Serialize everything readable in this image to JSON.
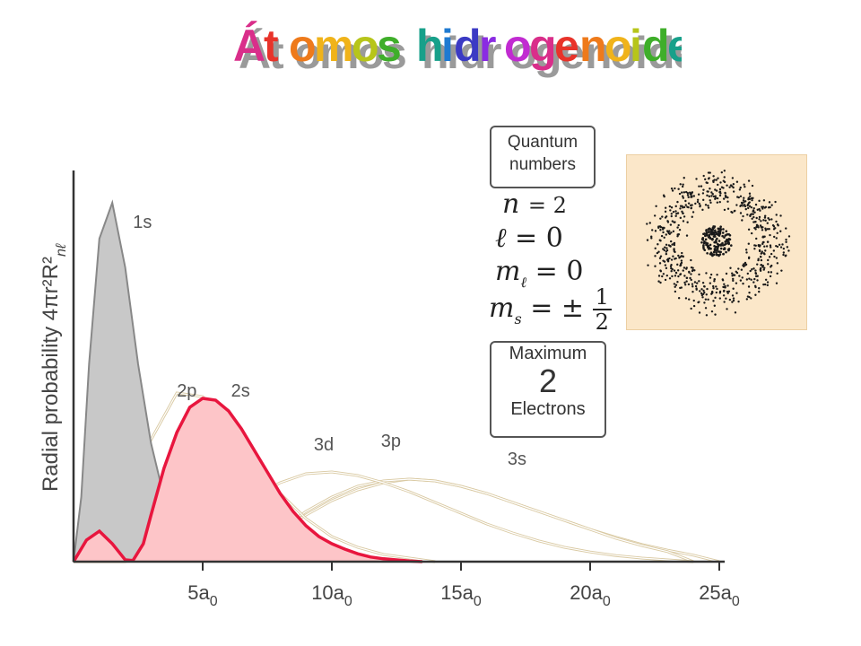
{
  "slide_title": "Átomos hidrogenoides",
  "title_colors": [
    "#d92e8a",
    "#e8332a",
    "#ee7a1b",
    "#f0b31a",
    "#b7c51a",
    "#3fae2a",
    "#17a08a",
    "#1f7ad1",
    "#3b3ac4",
    "#8a2be2",
    "#c12bd1"
  ],
  "chart_data": {
    "type": "line",
    "ylabel": "Radial probability 4πr²R²",
    "ylabel_sub": "nℓ",
    "x_ticks": [
      {
        "value": 5,
        "main": "5a",
        "sub": "0"
      },
      {
        "value": 10,
        "main": "10a",
        "sub": "0"
      },
      {
        "value": 15,
        "main": "15a",
        "sub": "0"
      },
      {
        "value": 20,
        "main": "20a",
        "sub": "0"
      },
      {
        "value": 25,
        "main": "25a",
        "sub": "0"
      }
    ],
    "xlim": [
      0,
      25
    ],
    "highlight_color": "#e8163e",
    "series": [
      {
        "name": "1s",
        "style": "filled-gray",
        "label_at": [
          2.3,
          0.93
        ],
        "x": [
          0,
          0.3,
          0.6,
          1.0,
          1.5,
          2.0,
          2.5,
          3.0,
          3.5,
          4.0,
          4.5,
          5.0
        ],
        "y": [
          0,
          0.18,
          0.55,
          0.9,
          1.0,
          0.82,
          0.55,
          0.33,
          0.18,
          0.09,
          0.04,
          0.0
        ]
      },
      {
        "name": "2s",
        "style": "highlight",
        "label_at": [
          6.1,
          0.46
        ],
        "x": [
          0,
          0.5,
          1.0,
          1.5,
          2.0,
          2.3,
          2.7,
          3.0,
          3.5,
          4.0,
          4.5,
          5.0,
          5.5,
          6.0,
          6.5,
          7.0,
          7.5,
          8.0,
          8.5,
          9.0,
          9.5,
          10.0,
          10.5,
          11.0,
          11.5,
          12.0,
          12.5,
          13.0,
          13.5
        ],
        "y": [
          0,
          0.06,
          0.085,
          0.05,
          0.005,
          0.003,
          0.05,
          0.13,
          0.26,
          0.36,
          0.43,
          0.455,
          0.45,
          0.42,
          0.37,
          0.31,
          0.25,
          0.19,
          0.14,
          0.1,
          0.07,
          0.05,
          0.035,
          0.022,
          0.013,
          0.008,
          0.005,
          0.002,
          0.0
        ]
      },
      {
        "name": "2p",
        "style": "thin-tan",
        "label_at": [
          4.0,
          0.46
        ],
        "x": [
          0,
          1,
          2,
          3,
          4,
          5,
          6,
          7,
          8,
          9,
          10,
          11,
          12,
          13,
          14
        ],
        "y": [
          0,
          0.04,
          0.17,
          0.34,
          0.47,
          0.46,
          0.38,
          0.28,
          0.19,
          0.12,
          0.07,
          0.04,
          0.02,
          0.01,
          0.0
        ]
      },
      {
        "name": "3d",
        "style": "thin-tan",
        "label_at": [
          9.3,
          0.31
        ],
        "x": [
          0,
          2,
          4,
          6,
          7,
          8,
          9,
          10,
          11,
          12,
          13,
          14,
          15,
          16,
          17,
          18,
          19,
          20,
          21,
          22,
          23,
          24
        ],
        "y": [
          0,
          0.0,
          0.04,
          0.13,
          0.18,
          0.22,
          0.245,
          0.25,
          0.24,
          0.22,
          0.195,
          0.165,
          0.135,
          0.105,
          0.08,
          0.058,
          0.04,
          0.027,
          0.017,
          0.01,
          0.005,
          0.0
        ]
      },
      {
        "name": "3p",
        "style": "thin-tan",
        "label_at": [
          11.9,
          0.32
        ],
        "x": [
          0,
          1,
          2,
          3,
          4,
          5,
          6,
          7,
          8,
          9,
          10,
          11,
          12,
          13,
          14,
          15,
          16,
          17,
          18,
          19,
          20,
          21,
          22,
          23,
          24
        ],
        "y": [
          0,
          0.01,
          0.03,
          0.055,
          0.07,
          0.06,
          0.045,
          0.05,
          0.09,
          0.14,
          0.18,
          0.21,
          0.225,
          0.23,
          0.225,
          0.21,
          0.19,
          0.165,
          0.14,
          0.115,
          0.09,
          0.065,
          0.045,
          0.028,
          0.0
        ]
      },
      {
        "name": "3s",
        "style": "thin-tan",
        "label_at": [
          16.8,
          0.27
        ],
        "x": [
          0,
          0.5,
          1,
          1.5,
          2,
          2.5,
          3,
          3.5,
          4,
          4.5,
          5,
          6,
          7,
          8,
          9,
          10,
          11,
          12,
          13,
          14,
          15,
          16,
          17,
          18,
          19,
          20,
          21,
          22,
          23,
          24,
          25
        ],
        "y": [
          0,
          0.02,
          0.035,
          0.025,
          0.008,
          0.012,
          0.03,
          0.04,
          0.035,
          0.02,
          0.005,
          0.015,
          0.05,
          0.09,
          0.13,
          0.17,
          0.2,
          0.22,
          0.23,
          0.225,
          0.21,
          0.19,
          0.165,
          0.14,
          0.115,
          0.09,
          0.068,
          0.048,
          0.032,
          0.018,
          0.0
        ]
      }
    ]
  },
  "quantum_box": {
    "line1": "Quantum",
    "line2": "numbers"
  },
  "quantum_numbers": {
    "n": {
      "sym": "n",
      "sub": "",
      "rel": "= 2"
    },
    "l": {
      "sym": "ℓ",
      "sub": "",
      "rel": "= 0"
    },
    "ml": {
      "sym": "m",
      "sub": "ℓ",
      "rel": "= 0"
    },
    "ms": {
      "sym": "m",
      "sub": "s",
      "rel": "= ±",
      "num": "1",
      "den": "2"
    }
  },
  "max_box": {
    "line1": "Maximum",
    "value": "2",
    "line3": "Electrons"
  },
  "cloud": {
    "dot_color": "#1a1a1a",
    "background": "#fbe7c9"
  }
}
